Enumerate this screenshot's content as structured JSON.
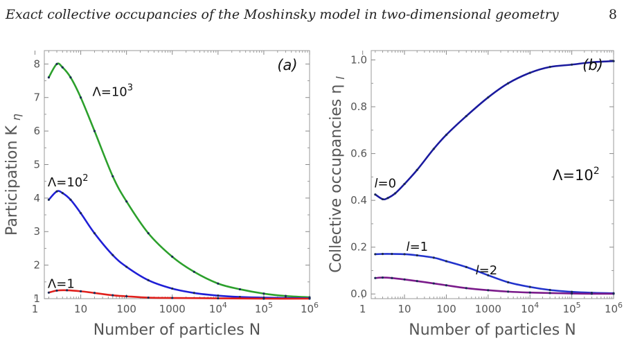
{
  "header": {
    "title": "Exact collective occupancies of the Moshinsky model in two-dimensional geometry",
    "page_number": "8"
  },
  "chart_data": [
    {
      "type": "line",
      "panel_label": "(a)",
      "xlabel": "Number of particles N",
      "ylabel": "Participation K",
      "ylabel_sub": "η",
      "x_scale": "log",
      "xlim": [
        1.6,
        1000000
      ],
      "ylim": [
        1,
        8.4
      ],
      "x_ticks": [
        {
          "value": 1,
          "label": "1"
        },
        {
          "value": 10,
          "label": "10"
        },
        {
          "value": 100,
          "label": "100"
        },
        {
          "value": 1000,
          "label": "1000"
        },
        {
          "value": 10000,
          "label": "10",
          "sup": "4"
        },
        {
          "value": 100000,
          "label": "10",
          "sup": "5"
        },
        {
          "value": 1000000,
          "label": "10",
          "sup": "6"
        }
      ],
      "y_ticks": [
        {
          "value": 1,
          "label": "1"
        },
        {
          "value": 2,
          "label": "2"
        },
        {
          "value": 3,
          "label": "3"
        },
        {
          "value": 4,
          "label": "4"
        },
        {
          "value": 5,
          "label": "5"
        },
        {
          "value": 6,
          "label": "6"
        },
        {
          "value": 7,
          "label": "7"
        },
        {
          "value": 8,
          "label": "8"
        }
      ],
      "series": [
        {
          "name": "Λ=10^3",
          "label_main": "Λ=10",
          "label_sup": "3",
          "label_at": [
            18,
            7.05
          ],
          "color": "#2ca02c",
          "x": [
            2,
            3,
            4,
            6,
            10,
            20,
            50,
            100,
            300,
            1000,
            3000,
            10000,
            30000,
            100000,
            300000,
            1000000
          ],
          "y": [
            7.6,
            8.0,
            7.9,
            7.6,
            7.0,
            6.0,
            4.65,
            3.9,
            2.95,
            2.25,
            1.8,
            1.45,
            1.28,
            1.15,
            1.08,
            1.04
          ]
        },
        {
          "name": "Λ=10^2",
          "label_main": "Λ=10",
          "label_sup": "2",
          "label_at": [
            1.9,
            4.35
          ],
          "color": "#1f1fd6",
          "x": [
            2,
            3,
            4,
            6,
            10,
            20,
            50,
            100,
            300,
            1000,
            3000,
            10000,
            30000,
            100000,
            300000,
            1000000
          ],
          "y": [
            3.95,
            4.2,
            4.15,
            3.95,
            3.55,
            2.95,
            2.3,
            1.95,
            1.55,
            1.3,
            1.17,
            1.09,
            1.05,
            1.03,
            1.02,
            1.01
          ]
        },
        {
          "name": "Λ=1",
          "label_main": "Λ=1",
          "label_sup": "",
          "label_at": [
            1.9,
            1.32
          ],
          "color": "#e0201c",
          "x": [
            2,
            3,
            5,
            10,
            20,
            50,
            100,
            300,
            1000,
            10000,
            100000,
            1000000
          ],
          "y": [
            1.18,
            1.24,
            1.25,
            1.22,
            1.17,
            1.1,
            1.07,
            1.03,
            1.02,
            1.01,
            1.0,
            1.0
          ]
        }
      ]
    },
    {
      "type": "line",
      "panel_label": "(b)",
      "annotation_main": "Λ=10",
      "annotation_sup": "2",
      "xlabel": "Number of particles N",
      "ylabel": "Collective occupancies η",
      "ylabel_sub": "l",
      "x_scale": "log",
      "xlim": [
        1.6,
        1000000
      ],
      "ylim": [
        -0.02,
        1.04
      ],
      "x_ticks": [
        {
          "value": 1,
          "label": "1"
        },
        {
          "value": 10,
          "label": "10"
        },
        {
          "value": 100,
          "label": "100"
        },
        {
          "value": 1000,
          "label": "1000"
        },
        {
          "value": 10000,
          "label": "10",
          "sup": "4"
        },
        {
          "value": 100000,
          "label": "10",
          "sup": "5"
        },
        {
          "value": 1000000,
          "label": "10",
          "sup": "6"
        }
      ],
      "y_ticks": [
        {
          "value": 0,
          "label": "0.0"
        },
        {
          "value": 0.2,
          "label": "0.2"
        },
        {
          "value": 0.4,
          "label": "0.4"
        },
        {
          "value": 0.6,
          "label": "0.6"
        },
        {
          "value": 0.8,
          "label": "0.8"
        },
        {
          "value": 1.0,
          "label": "1.0"
        }
      ],
      "series": [
        {
          "name": "l=0",
          "label_l": "l",
          "label_rest": "=0",
          "label_at": [
            1.9,
            0.455
          ],
          "color": "#1a1a9e",
          "x": [
            2,
            3,
            4,
            6,
            10,
            20,
            50,
            100,
            300,
            1000,
            3000,
            10000,
            30000,
            100000,
            300000,
            1000000
          ],
          "y": [
            0.425,
            0.405,
            0.41,
            0.43,
            0.47,
            0.53,
            0.62,
            0.68,
            0.76,
            0.84,
            0.9,
            0.945,
            0.97,
            0.98,
            0.99,
            0.995
          ]
        },
        {
          "name": "l=1",
          "label_l": "l",
          "label_rest": "=1",
          "label_at": [
            11,
            0.185
          ],
          "color": "#2233cc",
          "x": [
            2,
            3,
            5,
            10,
            20,
            50,
            100,
            300,
            1000,
            3000,
            10000,
            30000,
            100000,
            300000,
            1000000
          ],
          "y": [
            0.17,
            0.171,
            0.171,
            0.17,
            0.165,
            0.155,
            0.14,
            0.115,
            0.08,
            0.05,
            0.03,
            0.017,
            0.009,
            0.005,
            0.003
          ]
        },
        {
          "name": "l=2",
          "label_l": "l",
          "label_rest": "=2",
          "label_at": [
            500,
            0.083
          ],
          "color": "#7a1a8a",
          "x": [
            2,
            3,
            5,
            10,
            20,
            50,
            100,
            300,
            1000,
            3000,
            10000,
            30000,
            100000,
            300000,
            1000000
          ],
          "y": [
            0.068,
            0.07,
            0.068,
            0.062,
            0.055,
            0.045,
            0.037,
            0.025,
            0.016,
            0.01,
            0.006,
            0.004,
            0.002,
            0.001,
            0.001
          ]
        }
      ]
    }
  ]
}
